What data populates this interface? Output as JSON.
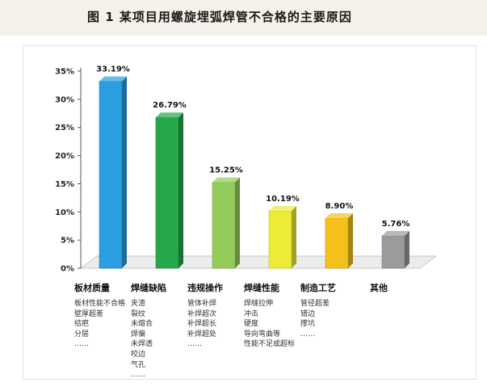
{
  "header": {
    "title": "图 1  某项目用螺旋埋弧焊管不合格的主要原因"
  },
  "chart_data": {
    "type": "bar",
    "title": "",
    "xlabel": "",
    "ylabel": "",
    "ylim": [
      0,
      35
    ],
    "yticks": [
      "0%",
      "5%",
      "10%",
      "15%",
      "20%",
      "25%",
      "30%",
      "35%"
    ],
    "grid": false,
    "categories": [
      "板材质量",
      "焊缝缺陷",
      "违规操作",
      "焊缝性能",
      "制造工艺",
      "其他"
    ],
    "values": [
      33.19,
      26.79,
      15.25,
      10.19,
      8.9,
      5.76
    ],
    "value_labels": [
      "33.19%",
      "26.79%",
      "15.25%",
      "10.19%",
      "8.90%",
      "5.76%"
    ],
    "colors": [
      "#2b9ee0",
      "#26a84a",
      "#93cc5a",
      "#ecec36",
      "#f4c01a",
      "#9b9b9b"
    ],
    "details": [
      [
        "板材性能不合格",
        "壁厚超差",
        "结疤",
        "分层",
        "……"
      ],
      [
        "夹渣",
        "裂纹",
        "未熔合",
        "焊偏",
        "未焊透",
        "咬边",
        "气孔",
        "……"
      ],
      [
        "管体补焊",
        "补焊超次",
        "补焊超长",
        "补焊超处",
        "……"
      ],
      [
        "焊缝拉伸",
        "冲击",
        "硬度",
        "导向弯曲等",
        "性能不足或超标"
      ],
      [
        "管径超差",
        "错边",
        "撑坑",
        "……"
      ],
      []
    ]
  }
}
